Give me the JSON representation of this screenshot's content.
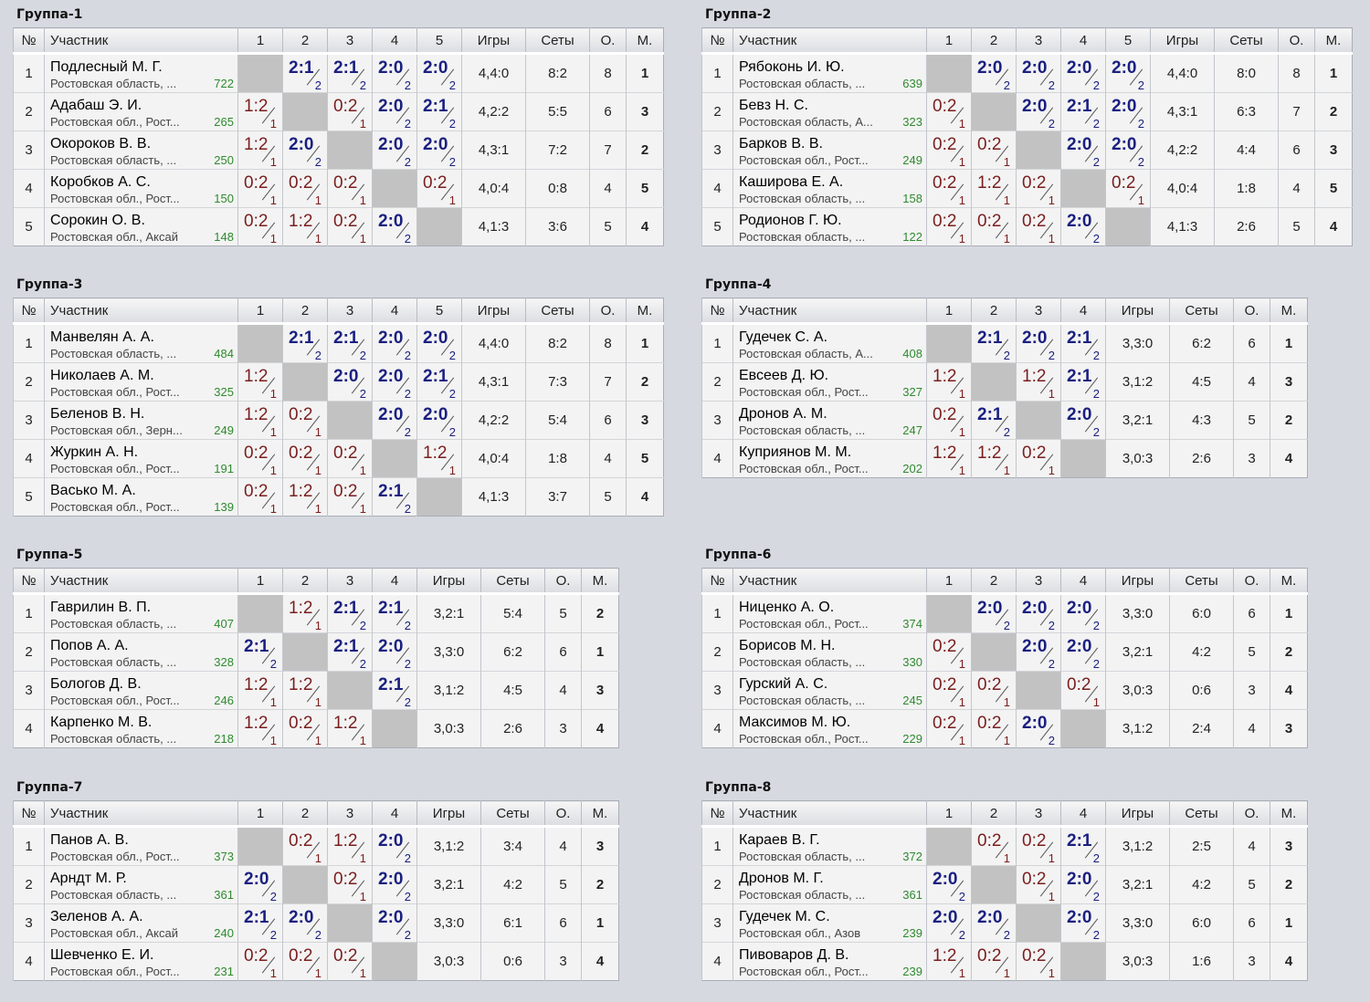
{
  "headers": {
    "num": "№",
    "name": "Участник",
    "games": "Игры",
    "sets": "Сеты",
    "points": "О.",
    "place": "М."
  },
  "groups": [
    {
      "title": "Группа-1",
      "players": [
        {
          "num": "1",
          "name": "Подлесный М. Г.",
          "region": "Ростовская область, ...",
          "rating": "722",
          "results": [
            "",
            "2:1|2",
            "2:1|2",
            "2:0|2",
            "2:0|2"
          ],
          "games": "4,4:0",
          "sets": "8:2",
          "points": "8",
          "place": "1"
        },
        {
          "num": "2",
          "name": "Адабаш Э. И.",
          "region": "Ростовская обл., Рост...",
          "rating": "265",
          "results": [
            "1:2|1",
            "",
            "0:2|1",
            "2:0|2",
            "2:1|2"
          ],
          "games": "4,2:2",
          "sets": "5:5",
          "points": "6",
          "place": "3"
        },
        {
          "num": "3",
          "name": "Окороков В. В.",
          "region": "Ростовская область, ...",
          "rating": "250",
          "results": [
            "1:2|1",
            "2:0|2",
            "",
            "2:0|2",
            "2:0|2"
          ],
          "games": "4,3:1",
          "sets": "7:2",
          "points": "7",
          "place": "2"
        },
        {
          "num": "4",
          "name": "Коробков А. С.",
          "region": "Ростовская обл., Рост...",
          "rating": "150",
          "results": [
            "0:2|1",
            "0:2|1",
            "0:2|1",
            "",
            "0:2|1"
          ],
          "games": "4,0:4",
          "sets": "0:8",
          "points": "4",
          "place": "5"
        },
        {
          "num": "5",
          "name": "Сорокин О. В.",
          "region": "Ростовская обл., Аксай",
          "rating": "148",
          "results": [
            "0:2|1",
            "1:2|1",
            "0:2|1",
            "2:0|2",
            ""
          ],
          "games": "4,1:3",
          "sets": "3:6",
          "points": "5",
          "place": "4"
        }
      ]
    },
    {
      "title": "Группа-2",
      "players": [
        {
          "num": "1",
          "name": "Рябоконь И. Ю.",
          "region": "Ростовская область, ...",
          "rating": "639",
          "results": [
            "",
            "2:0|2",
            "2:0|2",
            "2:0|2",
            "2:0|2"
          ],
          "games": "4,4:0",
          "sets": "8:0",
          "points": "8",
          "place": "1"
        },
        {
          "num": "2",
          "name": "Бевз Н. С.",
          "region": "Ростовская область, А...",
          "rating": "323",
          "results": [
            "0:2|1",
            "",
            "2:0|2",
            "2:1|2",
            "2:0|2"
          ],
          "games": "4,3:1",
          "sets": "6:3",
          "points": "7",
          "place": "2"
        },
        {
          "num": "3",
          "name": "Барков В. В.",
          "region": "Ростовская обл., Рост...",
          "rating": "249",
          "results": [
            "0:2|1",
            "0:2|1",
            "",
            "2:0|2",
            "2:0|2"
          ],
          "games": "4,2:2",
          "sets": "4:4",
          "points": "6",
          "place": "3"
        },
        {
          "num": "4",
          "name": "Каширова Е. А.",
          "region": "Ростовская область, ...",
          "rating": "158",
          "results": [
            "0:2|1",
            "1:2|1",
            "0:2|1",
            "",
            "0:2|1"
          ],
          "games": "4,0:4",
          "sets": "1:8",
          "points": "4",
          "place": "5"
        },
        {
          "num": "5",
          "name": "Родионов Г. Ю.",
          "region": "Ростовская область, ...",
          "rating": "122",
          "results": [
            "0:2|1",
            "0:2|1",
            "0:2|1",
            "2:0|2",
            ""
          ],
          "games": "4,1:3",
          "sets": "2:6",
          "points": "5",
          "place": "4"
        }
      ]
    },
    {
      "title": "Группа-3",
      "players": [
        {
          "num": "1",
          "name": "Манвелян А. А.",
          "region": "Ростовская область, ...",
          "rating": "484",
          "results": [
            "",
            "2:1|2",
            "2:1|2",
            "2:0|2",
            "2:0|2"
          ],
          "games": "4,4:0",
          "sets": "8:2",
          "points": "8",
          "place": "1"
        },
        {
          "num": "2",
          "name": "Николаев А. М.",
          "region": "Ростовская обл., Рост...",
          "rating": "325",
          "results": [
            "1:2|1",
            "",
            "2:0|2",
            "2:0|2",
            "2:1|2"
          ],
          "games": "4,3:1",
          "sets": "7:3",
          "points": "7",
          "place": "2"
        },
        {
          "num": "3",
          "name": "Беленов В. Н.",
          "region": "Ростовская обл., Зерн...",
          "rating": "249",
          "results": [
            "1:2|1",
            "0:2|1",
            "",
            "2:0|2",
            "2:0|2"
          ],
          "games": "4,2:2",
          "sets": "5:4",
          "points": "6",
          "place": "3"
        },
        {
          "num": "4",
          "name": "Журкин А. Н.",
          "region": "Ростовская обл., Рост...",
          "rating": "191",
          "results": [
            "0:2|1",
            "0:2|1",
            "0:2|1",
            "",
            "1:2|1"
          ],
          "games": "4,0:4",
          "sets": "1:8",
          "points": "4",
          "place": "5"
        },
        {
          "num": "5",
          "name": "Васько М. А.",
          "region": "Ростовская обл., Рост...",
          "rating": "139",
          "results": [
            "0:2|1",
            "1:2|1",
            "0:2|1",
            "2:1|2",
            ""
          ],
          "games": "4,1:3",
          "sets": "3:7",
          "points": "5",
          "place": "4"
        }
      ]
    },
    {
      "title": "Группа-4",
      "players": [
        {
          "num": "1",
          "name": "Гудечек С. А.",
          "region": "Ростовская область, А...",
          "rating": "408",
          "results": [
            "",
            "2:1|2",
            "2:0|2",
            "2:1|2"
          ],
          "games": "3,3:0",
          "sets": "6:2",
          "points": "6",
          "place": "1"
        },
        {
          "num": "2",
          "name": "Евсеев Д. Ю.",
          "region": "Ростовская обл., Рост...",
          "rating": "327",
          "results": [
            "1:2|1",
            "",
            "1:2|1",
            "2:1|2"
          ],
          "games": "3,1:2",
          "sets": "4:5",
          "points": "4",
          "place": "3"
        },
        {
          "num": "3",
          "name": "Дронов А. М.",
          "region": "Ростовская область, ...",
          "rating": "247",
          "results": [
            "0:2|1",
            "2:1|2",
            "",
            "2:0|2"
          ],
          "games": "3,2:1",
          "sets": "4:3",
          "points": "5",
          "place": "2"
        },
        {
          "num": "4",
          "name": "Куприянов М. М.",
          "region": "Ростовская обл., Рост...",
          "rating": "202",
          "results": [
            "1:2|1",
            "1:2|1",
            "0:2|1",
            ""
          ],
          "games": "3,0:3",
          "sets": "2:6",
          "points": "3",
          "place": "4"
        }
      ]
    },
    {
      "title": "Группа-5",
      "players": [
        {
          "num": "1",
          "name": "Гаврилин В. П.",
          "region": "Ростовская область, ...",
          "rating": "407",
          "results": [
            "",
            "1:2|1",
            "2:1|2",
            "2:1|2"
          ],
          "games": "3,2:1",
          "sets": "5:4",
          "points": "5",
          "place": "2"
        },
        {
          "num": "2",
          "name": "Попов А. А.",
          "region": "Ростовская область, ...",
          "rating": "328",
          "results": [
            "2:1|2",
            "",
            "2:1|2",
            "2:0|2"
          ],
          "games": "3,3:0",
          "sets": "6:2",
          "points": "6",
          "place": "1"
        },
        {
          "num": "3",
          "name": "Бологов Д. В.",
          "region": "Ростовская обл., Рост...",
          "rating": "246",
          "results": [
            "1:2|1",
            "1:2|1",
            "",
            "2:1|2"
          ],
          "games": "3,1:2",
          "sets": "4:5",
          "points": "4",
          "place": "3"
        },
        {
          "num": "4",
          "name": "Карпенко М. В.",
          "region": "Ростовская область, ...",
          "rating": "218",
          "results": [
            "1:2|1",
            "0:2|1",
            "1:2|1",
            ""
          ],
          "games": "3,0:3",
          "sets": "2:6",
          "points": "3",
          "place": "4"
        }
      ]
    },
    {
      "title": "Группа-6",
      "players": [
        {
          "num": "1",
          "name": "Ниценко А. О.",
          "region": "Ростовская обл., Рост...",
          "rating": "374",
          "results": [
            "",
            "2:0|2",
            "2:0|2",
            "2:0|2"
          ],
          "games": "3,3:0",
          "sets": "6:0",
          "points": "6",
          "place": "1"
        },
        {
          "num": "2",
          "name": "Борисов М. Н.",
          "region": "Ростовская область, ...",
          "rating": "330",
          "results": [
            "0:2|1",
            "",
            "2:0|2",
            "2:0|2"
          ],
          "games": "3,2:1",
          "sets": "4:2",
          "points": "5",
          "place": "2"
        },
        {
          "num": "3",
          "name": "Гурский А. С.",
          "region": "Ростовская область, ...",
          "rating": "245",
          "results": [
            "0:2|1",
            "0:2|1",
            "",
            "0:2|1"
          ],
          "games": "3,0:3",
          "sets": "0:6",
          "points": "3",
          "place": "4"
        },
        {
          "num": "4",
          "name": "Максимов М. Ю.",
          "region": "Ростовская обл., Рост...",
          "rating": "229",
          "results": [
            "0:2|1",
            "0:2|1",
            "2:0|2",
            ""
          ],
          "games": "3,1:2",
          "sets": "2:4",
          "points": "4",
          "place": "3"
        }
      ]
    },
    {
      "title": "Группа-7",
      "players": [
        {
          "num": "1",
          "name": "Панов А. В.",
          "region": "Ростовская обл., Рост...",
          "rating": "373",
          "results": [
            "",
            "0:2|1",
            "1:2|1",
            "2:0|2"
          ],
          "games": "3,1:2",
          "sets": "3:4",
          "points": "4",
          "place": "3"
        },
        {
          "num": "2",
          "name": "Арндт М. Р.",
          "region": "Ростовская область, ...",
          "rating": "361",
          "results": [
            "2:0|2",
            "",
            "0:2|1",
            "2:0|2"
          ],
          "games": "3,2:1",
          "sets": "4:2",
          "points": "5",
          "place": "2"
        },
        {
          "num": "3",
          "name": "Зеленов А. А.",
          "region": "Ростовская обл., Аксай",
          "rating": "240",
          "results": [
            "2:1|2",
            "2:0|2",
            "",
            "2:0|2"
          ],
          "games": "3,3:0",
          "sets": "6:1",
          "points": "6",
          "place": "1"
        },
        {
          "num": "4",
          "name": "Шевченко Е. И.",
          "region": "Ростовская обл., Рост...",
          "rating": "231",
          "results": [
            "0:2|1",
            "0:2|1",
            "0:2|1",
            ""
          ],
          "games": "3,0:3",
          "sets": "0:6",
          "points": "3",
          "place": "4"
        }
      ]
    },
    {
      "title": "Группа-8",
      "players": [
        {
          "num": "1",
          "name": "Караев В. Г.",
          "region": "Ростовская область, ...",
          "rating": "372",
          "results": [
            "",
            "0:2|1",
            "0:2|1",
            "2:1|2"
          ],
          "games": "3,1:2",
          "sets": "2:5",
          "points": "4",
          "place": "3"
        },
        {
          "num": "2",
          "name": "Дронов М. Г.",
          "region": "Ростовская область, ...",
          "rating": "361",
          "results": [
            "2:0|2",
            "",
            "0:2|1",
            "2:0|2"
          ],
          "games": "3,2:1",
          "sets": "4:2",
          "points": "5",
          "place": "2"
        },
        {
          "num": "3",
          "name": "Гудечек М. С.",
          "region": "Ростовская обл., Азов",
          "rating": "239",
          "results": [
            "2:0|2",
            "2:0|2",
            "",
            "2:0|2"
          ],
          "games": "3,3:0",
          "sets": "6:0",
          "points": "6",
          "place": "1"
        },
        {
          "num": "4",
          "name": "Пивоваров Д. В.",
          "region": "Ростовская обл., Рост...",
          "rating": "239",
          "results": [
            "1:2|1",
            "0:2|1",
            "0:2|1",
            ""
          ],
          "games": "3,0:3",
          "sets": "1:6",
          "points": "3",
          "place": "4"
        }
      ]
    }
  ]
}
